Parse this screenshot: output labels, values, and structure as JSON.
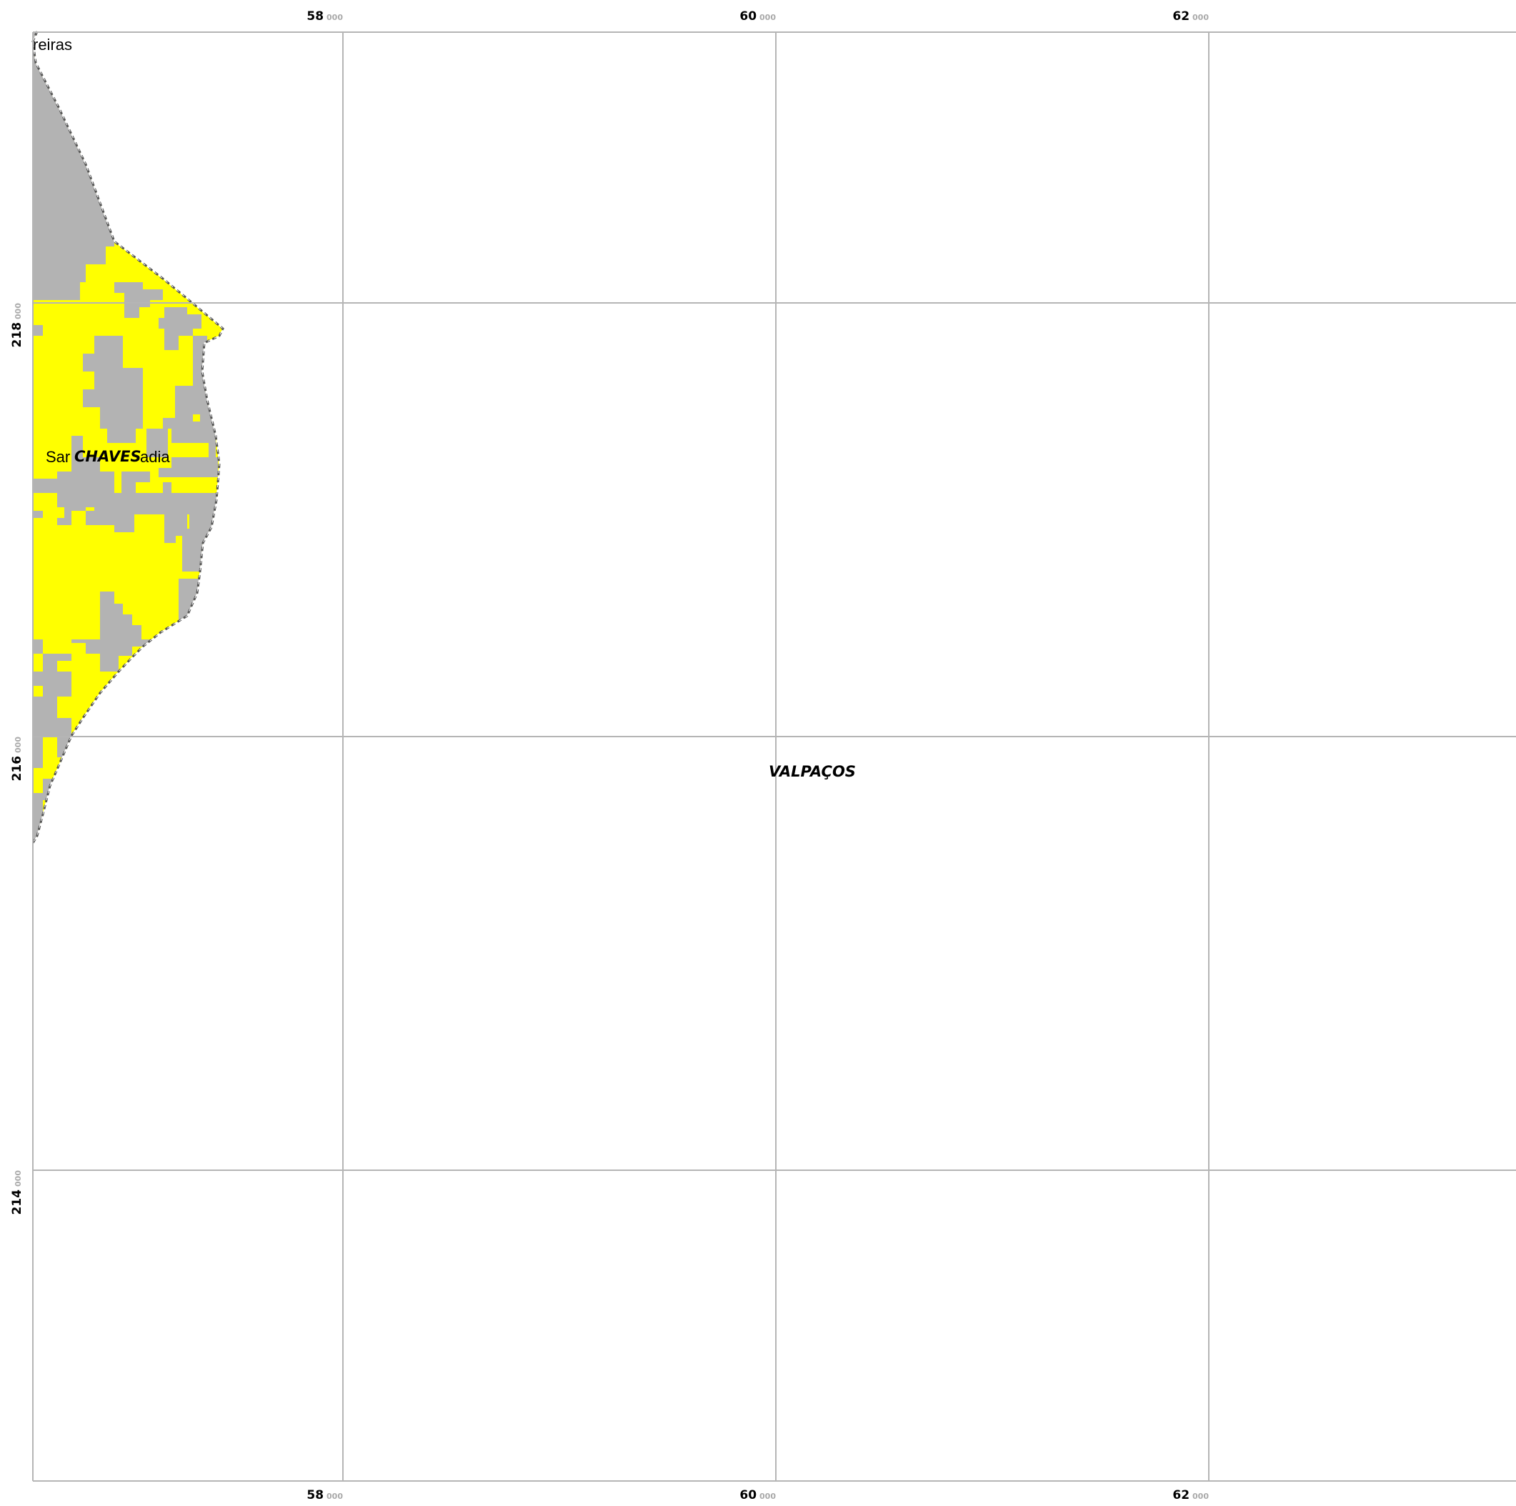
{
  "map": {
    "colors": {
      "grid": "#b5b5b5",
      "class_a": "#ffff00",
      "class_b": "#b3b3b3",
      "boundary": "#555555",
      "tick_sub": "#aaaaaa"
    },
    "x_ticks": [
      {
        "main": "58",
        "sub": "000"
      },
      {
        "main": "60",
        "sub": "000"
      },
      {
        "main": "62",
        "sub": "000"
      }
    ],
    "y_ticks": [
      {
        "main": "218",
        "sub": "000"
      },
      {
        "main": "216",
        "sub": "000"
      },
      {
        "main": "214",
        "sub": "000"
      }
    ],
    "place_labels": {
      "top_partial": "reiras",
      "left_part": "Sar",
      "right_part": "adia"
    },
    "municipality_labels": {
      "chaves": "CHAVES",
      "valpacos": "VALPAÇOS"
    }
  }
}
